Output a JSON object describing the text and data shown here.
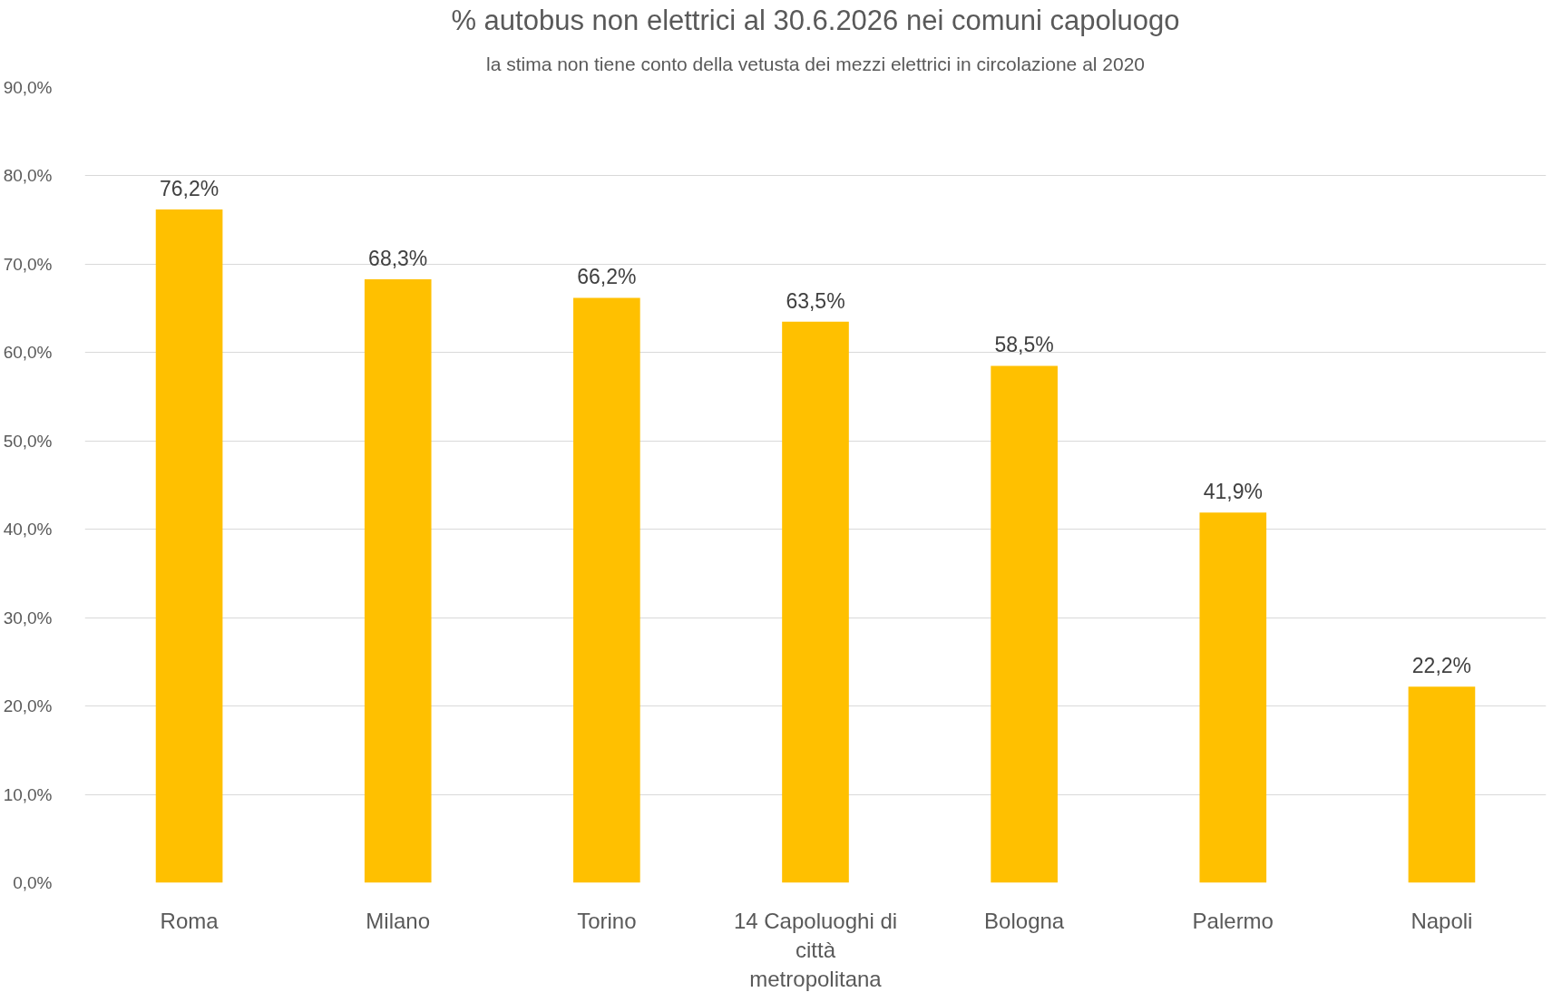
{
  "chart_data": {
    "type": "bar",
    "title": "% autobus non elettrici al 30.6.2026 nei comuni capoluogo",
    "subtitle": "la stima non tiene conto della vetusta dei mezzi elettrici in circolazione al 2020",
    "categories": [
      "Roma",
      "Milano",
      "Torino",
      "14 Capoluoghi di città metropolitana",
      "Bologna",
      "Palermo",
      "Napoli"
    ],
    "values": [
      76.2,
      68.3,
      66.2,
      63.5,
      58.5,
      41.9,
      22.2
    ],
    "value_labels": [
      "76,2%",
      "68,3%",
      "66,2%",
      "63,5%",
      "58,5%",
      "41,9%",
      "22,2%"
    ],
    "color": "#ffc000",
    "ylim": [
      0,
      90
    ],
    "yticks": [
      {
        "value": 0,
        "label": "0,0%"
      },
      {
        "value": 10,
        "label": "10,0%"
      },
      {
        "value": 20,
        "label": "20,0%"
      },
      {
        "value": 30,
        "label": "30,0%"
      },
      {
        "value": 40,
        "label": "40,0%"
      },
      {
        "value": 50,
        "label": "50,0%"
      },
      {
        "value": 60,
        "label": "60,0%"
      },
      {
        "value": 70,
        "label": "70,0%"
      },
      {
        "value": 80,
        "label": "80,0%"
      },
      {
        "value": 90,
        "label": "90,0%"
      }
    ],
    "grid": "y"
  }
}
